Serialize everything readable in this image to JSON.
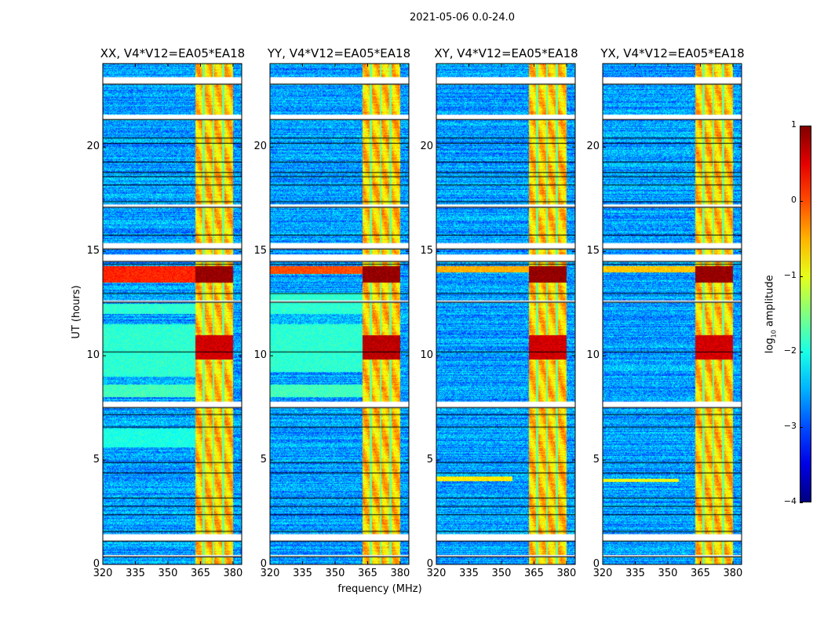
{
  "chart_data": {
    "type": "heatmap",
    "title": "2021-05-06 0.0-24.0",
    "xlabel": "frequency (MHz)",
    "ylabel": "UT (hours)",
    "xlim": [
      320,
      384
    ],
    "ylim": [
      0,
      24
    ],
    "xticks": [
      320,
      335,
      350,
      365,
      380
    ],
    "yticks": [
      0,
      5,
      10,
      15,
      20
    ],
    "colorbar": {
      "label_main": "log",
      "label_sub": "10",
      "label_rest": " amplitude",
      "range": [
        -4,
        1
      ],
      "ticks": [
        1,
        0,
        -1,
        -2,
        -3,
        -4
      ],
      "colormap": "jet"
    },
    "base_level": -2.6,
    "rfi_band_mhz": [
      362.5,
      380
    ],
    "rfi_band_level": -0.6,
    "rfi_gaps_mhz": [
      366.5,
      371,
      375.5
    ],
    "flagged_hours": [
      [
        23.0,
        23.35
      ],
      [
        21.3,
        21.55
      ],
      [
        17.1,
        17.25
      ],
      [
        15.1,
        15.4
      ],
      [
        14.5,
        14.85
      ],
      [
        12.55,
        12.65
      ],
      [
        7.5,
        7.8
      ],
      [
        1.1,
        1.45
      ],
      [
        0.35,
        0.45
      ]
    ],
    "black_lines_hours": [
      20.45,
      20.2,
      19.3,
      18.8,
      18.6,
      18.2,
      17.4,
      15.8,
      14.4,
      13.0,
      10.2,
      7.2,
      6.6,
      4.9,
      4.4,
      3.2,
      2.8,
      2.4,
      1.6
    ],
    "panels": [
      {
        "title": "XX, V4*V12=EA05*EA18",
        "features": [
          {
            "t": [
              13.5,
              14.3
            ],
            "f": [
              320,
              362.5
            ],
            "level": 0.2
          },
          {
            "t": [
              13.5,
              14.3
            ],
            "f": [
              362.5,
              380
            ],
            "level": 0.9
          },
          {
            "t": [
              9.8,
              11.0
            ],
            "f": [
              362.5,
              380
            ],
            "level": 0.6
          },
          {
            "t": [
              8.0,
              8.6
            ],
            "f": [
              320,
              362.5
            ],
            "level": -1.8
          },
          {
            "t": [
              9.0,
              11.5
            ],
            "f": [
              320,
              362.5
            ],
            "level": -1.9
          },
          {
            "t": [
              12.0,
              12.5
            ],
            "f": [
              320,
              362.5
            ],
            "level": -1.9
          },
          {
            "t": [
              5.6,
              6.5
            ],
            "f": [
              320,
              362.5
            ],
            "level": -2.0
          }
        ]
      },
      {
        "title": "YY, V4*V12=EA05*EA18",
        "features": [
          {
            "t": [
              13.9,
              14.3
            ],
            "f": [
              320,
              362.5
            ],
            "level": 0.0
          },
          {
            "t": [
              13.5,
              14.3
            ],
            "f": [
              362.5,
              380
            ],
            "level": 0.9
          },
          {
            "t": [
              9.8,
              11.0
            ],
            "f": [
              362.5,
              380
            ],
            "level": 0.7
          },
          {
            "t": [
              8.0,
              8.6
            ],
            "f": [
              320,
              362.5
            ],
            "level": -1.8
          },
          {
            "t": [
              9.2,
              11.5
            ],
            "f": [
              320,
              362.5
            ],
            "level": -1.9
          },
          {
            "t": [
              12.0,
              13.0
            ],
            "f": [
              320,
              362.5
            ],
            "level": -1.9
          }
        ]
      },
      {
        "title": "XY, V4*V12=EA05*EA18",
        "features": [
          {
            "t": [
              14.0,
              14.3
            ],
            "f": [
              320,
              362.5
            ],
            "level": -0.5
          },
          {
            "t": [
              13.5,
              14.3
            ],
            "f": [
              362.5,
              380
            ],
            "level": 0.9
          },
          {
            "t": [
              9.8,
              11.0
            ],
            "f": [
              362.5,
              380
            ],
            "level": 0.6
          },
          {
            "t": [
              4.0,
              4.2
            ],
            "f": [
              320,
              355
            ],
            "level": -0.8
          }
        ]
      },
      {
        "title": "YX, V4*V12=EA05*EA18",
        "features": [
          {
            "t": [
              14.0,
              14.3
            ],
            "f": [
              320,
              362.5
            ],
            "level": -0.6
          },
          {
            "t": [
              13.5,
              14.3
            ],
            "f": [
              362.5,
              380
            ],
            "level": 0.9
          },
          {
            "t": [
              9.8,
              11.0
            ],
            "f": [
              362.5,
              380
            ],
            "level": 0.6
          },
          {
            "t": [
              3.95,
              4.1
            ],
            "f": [
              320,
              355
            ],
            "level": -0.9
          }
        ]
      }
    ]
  }
}
